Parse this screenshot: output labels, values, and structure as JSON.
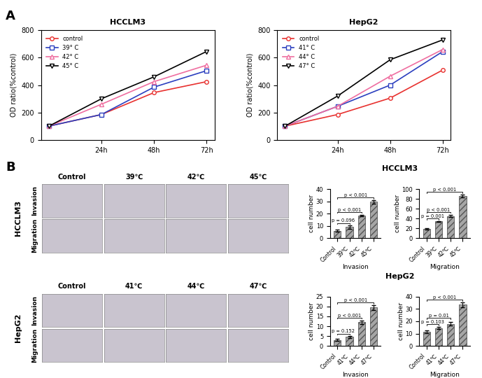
{
  "panel_labels": [
    "A",
    "B"
  ],
  "bar_group_titles": [
    "HCCLM3",
    "HepG2"
  ],
  "image_grids": [
    {
      "title": "HCCLM3",
      "columns": [
        "Control",
        "39℃",
        "42℃",
        "45℃"
      ],
      "rows": [
        "Invasion",
        "Migration"
      ]
    },
    {
      "title": "HepG2",
      "columns": [
        "Control",
        "41℃",
        "44℃",
        "47℃"
      ],
      "rows": [
        "Invasion",
        "Migration"
      ]
    }
  ],
  "chart_data": [
    {
      "type": "line",
      "title": "HCCLM3",
      "ylabel": "OD ratio(%control)",
      "categories": [
        null,
        "24h",
        "48h",
        "72h"
      ],
      "ylim": [
        0,
        800
      ],
      "yticks": [
        0,
        200,
        400,
        600,
        800
      ],
      "legend": "upper left",
      "series": [
        {
          "name": "control",
          "color": "#e8312f",
          "marker": "circle",
          "values": [
            100,
            185,
            345,
            425
          ]
        },
        {
          "name": "39° C",
          "color": "#2b3fbf",
          "marker": "square",
          "values": [
            100,
            185,
            385,
            505
          ]
        },
        {
          "name": "42° C",
          "color": "#ef6ea0",
          "marker": "triangle_up",
          "values": [
            100,
            260,
            425,
            545
          ]
        },
        {
          "name": "45° C",
          "color": "#000000",
          "marker": "triangle_down",
          "values": [
            100,
            300,
            460,
            645
          ]
        }
      ]
    },
    {
      "type": "line",
      "title": "HepG2",
      "ylabel": "OD ratio(%control)",
      "categories": [
        null,
        "24h",
        "48h",
        "72h"
      ],
      "ylim": [
        0,
        800
      ],
      "yticks": [
        0,
        200,
        400,
        600,
        800
      ],
      "legend": "upper left",
      "series": [
        {
          "name": "control",
          "color": "#e8312f",
          "marker": "circle",
          "values": [
            100,
            185,
            305,
            510
          ]
        },
        {
          "name": "41° C",
          "color": "#2b3fbf",
          "marker": "square",
          "values": [
            100,
            245,
            400,
            645
          ]
        },
        {
          "name": "44° C",
          "color": "#ef6ea0",
          "marker": "triangle_up",
          "values": [
            100,
            245,
            465,
            660
          ]
        },
        {
          "name": "47° C",
          "color": "#000000",
          "marker": "triangle_down",
          "values": [
            100,
            320,
            585,
            730
          ]
        }
      ]
    },
    {
      "type": "bar",
      "group": "HCCLM3",
      "xlabel": "Invasion",
      "ylabel": "cell number",
      "categories": [
        "Control",
        "39℃",
        "42℃",
        "45℃"
      ],
      "values": [
        6,
        9,
        18.5,
        29.5
      ],
      "errors": [
        1,
        1.2,
        0.7,
        1.5
      ],
      "color": "#a6a6a6",
      "ylim": [
        0,
        40
      ],
      "yticks": [
        0,
        10,
        20,
        30,
        40
      ],
      "comparisons": [
        {
          "from": "Control",
          "to": "39℃",
          "label": "p = 0.096"
        },
        {
          "from": "Control",
          "to": "42℃",
          "label": "p < 0.001"
        },
        {
          "from": "Control",
          "to": "45℃",
          "label": "p < 0.001"
        }
      ]
    },
    {
      "type": "bar",
      "group": "HCCLM3",
      "xlabel": "Migration",
      "ylabel": "cell number",
      "categories": [
        "Control",
        "39℃",
        "42℃",
        "45℃"
      ],
      "values": [
        19,
        34,
        45,
        86
      ],
      "errors": [
        1.5,
        1,
        2,
        3
      ],
      "color": "#a6a6a6",
      "ylim": [
        0,
        100
      ],
      "yticks": [
        0,
        20,
        40,
        60,
        80,
        100
      ],
      "comparisons": [
        {
          "from": "Control",
          "to": "39℃",
          "label": "p = 0.001"
        },
        {
          "from": "Control",
          "to": "42℃",
          "label": "p < 0.001"
        },
        {
          "from": "Control",
          "to": "45℃",
          "label": "p < 0.001"
        }
      ]
    },
    {
      "type": "bar",
      "group": "HepG2",
      "xlabel": "Invasion",
      "ylabel": "cell number",
      "categories": [
        "Control",
        "41℃",
        "44℃",
        "47℃"
      ],
      "values": [
        3,
        4.5,
        12,
        19.5
      ],
      "errors": [
        0.5,
        0.5,
        1,
        1.2
      ],
      "color": "#a6a6a6",
      "ylim": [
        0,
        25
      ],
      "yticks": [
        0,
        5,
        10,
        15,
        20,
        25
      ],
      "comparisons": [
        {
          "from": "Control",
          "to": "41℃",
          "label": "p = 0.152"
        },
        {
          "from": "Control",
          "to": "44℃",
          "label": "p < 0.001"
        },
        {
          "from": "Control",
          "to": "47℃",
          "label": "p < 0.001"
        }
      ]
    },
    {
      "type": "bar",
      "group": "HepG2",
      "xlabel": "Migration",
      "ylabel": "cell number",
      "categories": [
        "Control",
        "41℃",
        "44℃",
        "47℃"
      ],
      "values": [
        11.5,
        14.5,
        18,
        33.5
      ],
      "errors": [
        1,
        1,
        1.5,
        2
      ],
      "color": "#a6a6a6",
      "ylim": [
        0,
        40
      ],
      "yticks": [
        0,
        10,
        20,
        30,
        40
      ],
      "comparisons": [
        {
          "from": "Control",
          "to": "41℃",
          "label": "p = 0.103"
        },
        {
          "from": "Control",
          "to": "44℃",
          "label": "p = 0.01"
        },
        {
          "from": "Control",
          "to": "47℃",
          "label": "p < 0.001"
        }
      ]
    }
  ]
}
